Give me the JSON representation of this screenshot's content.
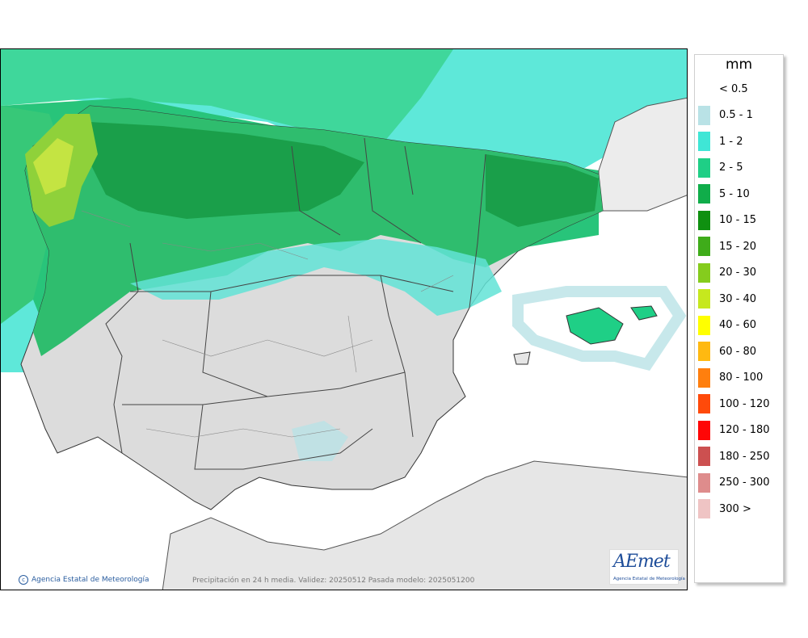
{
  "map": {
    "credit": "Agencia Estatal de Meteorología",
    "caption": "Precipitación en 24 h media. Validez: 20250512 Pasada modelo: 2025051200",
    "logo_text": "AEmet",
    "logo_subtitle": "Agencia Estatal de Meteorología"
  },
  "legend": {
    "unit": "mm",
    "items": [
      {
        "label": "< 0.5",
        "color": "#ffffff"
      },
      {
        "label": "0.5 - 1",
        "color": "#b9e2e6"
      },
      {
        "label": "1 - 2",
        "color": "#3fe6d6"
      },
      {
        "label": "2 - 5",
        "color": "#1fcf86"
      },
      {
        "label": "5 - 10",
        "color": "#10ad4a"
      },
      {
        "label": "10 - 15",
        "color": "#0f9010"
      },
      {
        "label": "15 - 20",
        "color": "#3fac1a"
      },
      {
        "label": "20 - 30",
        "color": "#85cc1d"
      },
      {
        "label": "30 - 40",
        "color": "#c6e81e"
      },
      {
        "label": "40 - 60",
        "color": "#ffff00"
      },
      {
        "label": "60 - 80",
        "color": "#ffb911"
      },
      {
        "label": "80 - 100",
        "color": "#ff7f0e"
      },
      {
        "label": "100 - 120",
        "color": "#ff4a0a"
      },
      {
        "label": "120 - 180",
        "color": "#ff0606"
      },
      {
        "label": "180 - 250",
        "color": "#cc5050"
      },
      {
        "label": "250 - 300",
        "color": "#de8c8c"
      },
      {
        "label": "300 >",
        "color": "#efc4c4"
      }
    ]
  }
}
